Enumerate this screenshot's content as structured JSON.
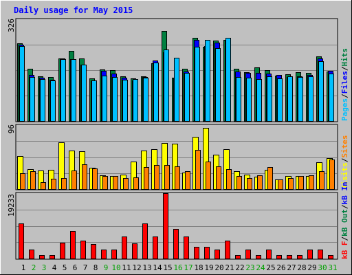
{
  "chart_data": [
    {
      "type": "bar",
      "panel": "hits-files-pages",
      "title": "Daily usage for May 2015",
      "ymax_label": "326",
      "categories": [
        "1",
        "2",
        "3",
        "4",
        "5",
        "6",
        "7",
        "8",
        "9",
        "10",
        "11",
        "12",
        "13",
        "14",
        "15",
        "16",
        "17",
        "18",
        "19",
        "20",
        "21",
        "22",
        "23",
        "24",
        "25",
        "26",
        "27",
        "28",
        "29",
        "30",
        "31"
      ],
      "weekend_categories": [
        "2",
        "3",
        "9",
        "10",
        "16",
        "17",
        "23",
        "24",
        "30",
        "31"
      ],
      "series": [
        {
          "name": "Hits",
          "color": "#008040",
          "values": [
            250,
            168,
            144,
            140,
            201,
            225,
            200,
            136,
            166,
            163,
            143,
            137,
            143,
            184,
            288,
            139,
            167,
            267,
            237,
            257,
            261,
            167,
            156,
            171,
            163,
            146,
            149,
            157,
            154,
            207,
            159
          ]
        },
        {
          "name": "Files",
          "color": "#0000ff",
          "values": [
            244,
            148,
            139,
            133,
            201,
            198,
            180,
            131,
            160,
            151,
            138,
            131,
            140,
            193,
            220,
            138,
            159,
            260,
            241,
            251,
            258,
            158,
            154,
            155,
            152,
            147,
            140,
            144,
            147,
            201,
            160
          ]
        },
        {
          "name": "Pages",
          "color": "#00c0ff",
          "values": [
            240,
            140,
            135,
            129,
            198,
            198,
            180,
            131,
            146,
            142,
            133,
            134,
            139,
            188,
            229,
            202,
            155,
            238,
            259,
            233,
            267,
            142,
            139,
            134,
            143,
            137,
            143,
            142,
            143,
            191,
            152
          ]
        }
      ],
      "legend": [
        "Pages",
        "/",
        "Files",
        "/",
        "Hits"
      ]
    },
    {
      "type": "bar",
      "panel": "visits-sites",
      "ymax_label": "96",
      "categories": [
        "1",
        "2",
        "3",
        "4",
        "5",
        "6",
        "7",
        "8",
        "9",
        "10",
        "11",
        "12",
        "13",
        "14",
        "15",
        "16",
        "17",
        "18",
        "19",
        "20",
        "21",
        "22",
        "23",
        "24",
        "25",
        "26",
        "27",
        "28",
        "29",
        "30",
        "31"
      ],
      "series": [
        {
          "name": "Visits",
          "color": "#ffff00",
          "values": [
            50,
            30,
            28,
            29,
            70,
            58,
            57,
            32,
            21,
            20,
            22,
            41,
            58,
            60,
            69,
            68,
            25,
            78,
            92,
            52,
            60,
            27,
            22,
            19,
            29,
            14,
            20,
            20,
            20,
            40,
            46
          ]
        },
        {
          "name": "Sites",
          "color": "#ff8000",
          "values": [
            24,
            27,
            10,
            15,
            17,
            28,
            37,
            31,
            20,
            20,
            17,
            18,
            33,
            36,
            36,
            34,
            27,
            59,
            41,
            34,
            30,
            20,
            16,
            21,
            33,
            14,
            17,
            20,
            21,
            27,
            44
          ]
        }
      ],
      "legend": [
        "Visits",
        "/",
        "Sites"
      ]
    },
    {
      "type": "bar",
      "panel": "kbytes",
      "ymax_label": "19233",
      "categories": [
        "1",
        "2",
        "3",
        "4",
        "5",
        "6",
        "7",
        "8",
        "9",
        "10",
        "11",
        "12",
        "13",
        "14",
        "15",
        "16",
        "17",
        "18",
        "19",
        "20",
        "21",
        "22",
        "23",
        "24",
        "25",
        "26",
        "27",
        "28",
        "29",
        "30",
        "31"
      ],
      "series": [
        {
          "name": "KBytes F",
          "color": "#ff0000",
          "values": [
            10300,
            2610,
            1060,
            1050,
            4650,
            8190,
            5260,
            4200,
            2600,
            2600,
            6440,
            4460,
            10300,
            6440,
            19200,
            8700,
            6440,
            3470,
            3470,
            2600,
            5260,
            1050,
            2600,
            1050,
            2610,
            1050,
            1050,
            1050,
            2600,
            2600,
            1050
          ]
        }
      ],
      "legend": [
        "kB F",
        "/",
        "kB Out",
        "/",
        "kB In"
      ]
    }
  ],
  "legend_colors": {
    "hits": "#008040",
    "files": "#0000ff",
    "pages": "#00c0ff",
    "visits": "#ffff00",
    "sites": "#ff8000",
    "kbf": "#ff0000",
    "kbout": "#008040",
    "kbin": "#0000ff",
    "separator": "#000000"
  },
  "weekday_color": "#000000",
  "weekend_color": "#00a000",
  "title_color": "#0000ff"
}
